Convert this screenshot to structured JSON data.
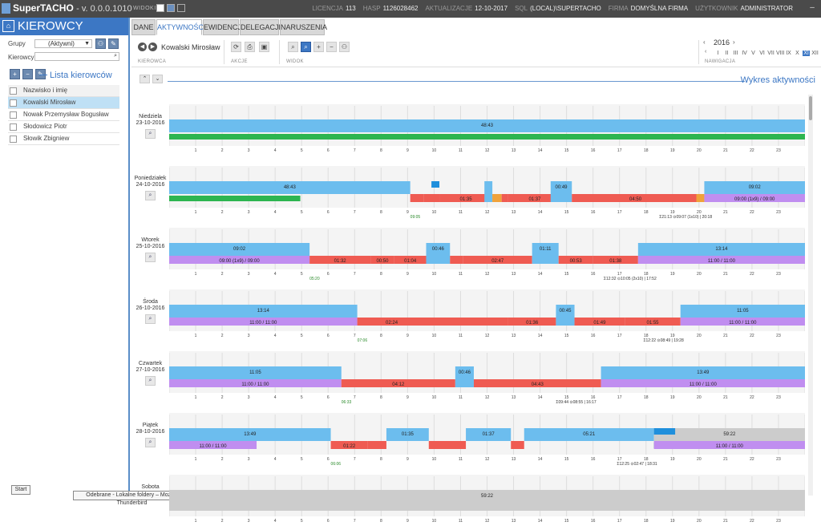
{
  "app": {
    "title": "SuperTACHO",
    "version": "- v. 0.0.0.1010",
    "widoki_label": "WIDOKI"
  },
  "meta": [
    {
      "k": "LICENCJA",
      "v": "113"
    },
    {
      "k": "HASP",
      "v": "1126028462"
    },
    {
      "k": "AKTUALIZACJE",
      "v": "12-10-2017"
    },
    {
      "k": "SQL",
      "v": "(LOCAL)\\SUPERTACHO"
    },
    {
      "k": "FIRMA",
      "v": "DOMYŚLNA FIRMA"
    },
    {
      "k": "UŻYTKOWNIK",
      "v": "ADMINISTRATOR"
    }
  ],
  "sidebar": {
    "title": "KIEROWCY",
    "grupy_label": "Grupy",
    "grupy_value": "(Aktywni)",
    "kierowcy_label": "Kierowcy",
    "list_title": "Lista kierowców",
    "column_header": "Nazwisko i imię",
    "drivers": [
      "Kowalski Mirosław",
      "Nowak Przemysław Bogusław",
      "Słodowicz Piotr",
      "Słowik Zbigniew"
    ]
  },
  "tabs": [
    "DANE",
    "AKTYWNOŚCI",
    "EWIDENCJA",
    "DELEGACJE",
    "NARUSZENIA"
  ],
  "active_tab": "AKTYWNOŚCI",
  "toolbar": {
    "driver_name": "Kowalski Mirosław",
    "kierowca_label": "KIEROWCA",
    "akcje_label": "AKCJE",
    "widok_label": "WIDOK",
    "nawigacja_label": "NAWIGACJA",
    "year": "2016",
    "months": [
      "I",
      "II",
      "III",
      "IV",
      "V",
      "VI",
      "VII",
      "VIII",
      "IX",
      "X",
      "XI",
      "XII"
    ],
    "selected_month": "XI"
  },
  "chart_title": "Wykres aktywności",
  "taskbar": {
    "start": "Start",
    "thunderbird": "Odebrane - Lokalne foldery – Mozilla Thunderbird"
  },
  "colors": {
    "rest": "#6cbdee",
    "drive": "#ef5b52",
    "work": "#f0a23a",
    "avail": "#1f8fdc",
    "ferry": "#c08ef0",
    "green": "#2db550",
    "unknown": "#cccccc",
    "accent": "#3c77c4"
  },
  "chart_data": {
    "type": "timeline",
    "x_ticks": [
      "1",
      "2",
      "3",
      "4",
      "5",
      "6",
      "7",
      "8",
      "9",
      "10",
      "11",
      "12",
      "13",
      "14",
      "15",
      "16",
      "17",
      "18",
      "19",
      "20",
      "21",
      "22",
      "23"
    ],
    "days": [
      {
        "day": "Niedziela",
        "date": "23-10-2016",
        "segments": [
          {
            "start": 0,
            "end": 24,
            "type": "rest",
            "label": "48:43",
            "row": "top"
          },
          {
            "start": 0,
            "end": 24,
            "type": "green",
            "row": "green"
          }
        ],
        "texts": []
      },
      {
        "day": "Poniedziałek",
        "date": "24-10-2016",
        "segments": [
          {
            "start": 0,
            "end": 9.1,
            "type": "rest",
            "label": "48:43",
            "row": "top"
          },
          {
            "start": 0,
            "end": 4.95,
            "type": "green",
            "row": "green"
          },
          {
            "start": 9.1,
            "end": 9.6,
            "type": "drive",
            "row": "bottom"
          },
          {
            "start": 9.6,
            "end": 10.2,
            "type": "drive",
            "row": "bottom"
          },
          {
            "start": 9.9,
            "end": 10.2,
            "type": "avail",
            "row": "mid"
          },
          {
            "start": 10.2,
            "end": 12.2,
            "type": "drive",
            "label": "01:35",
            "row": "bottom"
          },
          {
            "start": 11.9,
            "end": 12.2,
            "type": "rest",
            "row": "top"
          },
          {
            "start": 12.2,
            "end": 12.55,
            "type": "work",
            "row": "bottom"
          },
          {
            "start": 12.55,
            "end": 12.8,
            "type": "drive",
            "row": "bottom"
          },
          {
            "start": 12.8,
            "end": 14.8,
            "type": "drive",
            "label": "01:37",
            "row": "bottom"
          },
          {
            "start": 14.4,
            "end": 15.2,
            "type": "rest",
            "label": "00:49",
            "row": "top"
          },
          {
            "start": 15.2,
            "end": 20,
            "type": "drive",
            "label": "04:50",
            "row": "bottom"
          },
          {
            "start": 19.9,
            "end": 20.2,
            "type": "work",
            "row": "bottom"
          },
          {
            "start": 20.2,
            "end": 24,
            "type": "rest",
            "label": "09:02",
            "row": "top"
          },
          {
            "start": 20.2,
            "end": 24,
            "type": "ferry",
            "label": "09:00 (1x9) / 09:00",
            "row": "bottom"
          }
        ],
        "texts": [
          {
            "at": 9.1,
            "text": "09:05",
            "color": "#2a8a2a"
          },
          {
            "at": 18.5,
            "text": "Σ21:13 ⊙09:07 (1x10) | 20:18",
            "color": "#333"
          }
        ]
      },
      {
        "day": "Wtorek",
        "date": "25-10-2016",
        "segments": [
          {
            "start": 0,
            "end": 5.3,
            "type": "rest",
            "label": "09:02",
            "row": "top"
          },
          {
            "start": 0,
            "end": 5.3,
            "type": "ferry",
            "label": "09:00 (1x9) / 09:00",
            "row": "bottom"
          },
          {
            "start": 5.3,
            "end": 7.6,
            "type": "drive",
            "label": "01:32",
            "row": "bottom"
          },
          {
            "start": 7.6,
            "end": 8.5,
            "type": "drive",
            "label": "00:50",
            "row": "bottom"
          },
          {
            "start": 8.5,
            "end": 9.7,
            "type": "drive",
            "label": "01:04",
            "row": "bottom"
          },
          {
            "start": 9.7,
            "end": 10.6,
            "type": "rest",
            "label": "00:46",
            "row": "top"
          },
          {
            "start": 10.6,
            "end": 11.1,
            "type": "drive",
            "row": "bottom"
          },
          {
            "start": 11.1,
            "end": 13.7,
            "type": "drive",
            "label": "02:47",
            "row": "bottom"
          },
          {
            "start": 13.7,
            "end": 14.7,
            "type": "rest",
            "label": "01:11",
            "row": "top"
          },
          {
            "start": 14.7,
            "end": 16,
            "type": "drive",
            "label": "00:53",
            "row": "bottom"
          },
          {
            "start": 16,
            "end": 17.7,
            "type": "drive",
            "label": "01:38",
            "row": "bottom"
          },
          {
            "start": 17.7,
            "end": 24,
            "type": "rest",
            "label": "13:14",
            "row": "top"
          },
          {
            "start": 17.7,
            "end": 24,
            "type": "ferry",
            "label": "11:00 / 11:00",
            "row": "bottom"
          }
        ],
        "texts": [
          {
            "at": 5.3,
            "text": "05:20",
            "color": "#2a8a2a"
          },
          {
            "at": 16.4,
            "text": "Σ12:32 ⊙10:05 (2x10) | 17:52",
            "color": "#333"
          }
        ]
      },
      {
        "day": "Środa",
        "date": "26-10-2016",
        "segments": [
          {
            "start": 0,
            "end": 7.1,
            "type": "rest",
            "label": "13:14",
            "row": "top"
          },
          {
            "start": 0,
            "end": 7.1,
            "type": "ferry",
            "label": "11:00 / 11:00",
            "row": "bottom"
          },
          {
            "start": 7.1,
            "end": 9.7,
            "type": "drive",
            "label": "02:24",
            "row": "bottom"
          },
          {
            "start": 9.7,
            "end": 12.8,
            "type": "drive",
            "row": "bottom"
          },
          {
            "start": 12.8,
            "end": 14.6,
            "type": "drive",
            "label": "01:36",
            "row": "bottom"
          },
          {
            "start": 14.6,
            "end": 15.3,
            "type": "rest",
            "label": "00:45",
            "row": "top"
          },
          {
            "start": 15.3,
            "end": 17.2,
            "type": "drive",
            "label": "01:49",
            "row": "bottom"
          },
          {
            "start": 17.2,
            "end": 19.3,
            "type": "drive",
            "label": "01:55",
            "row": "bottom"
          },
          {
            "start": 19.3,
            "end": 24,
            "type": "rest",
            "label": "11:05",
            "row": "top"
          },
          {
            "start": 19.3,
            "end": 24,
            "type": "ferry",
            "label": "11:00 / 11:00",
            "row": "bottom"
          }
        ],
        "texts": [
          {
            "at": 7.1,
            "text": "07:06",
            "color": "#2a8a2a"
          },
          {
            "at": 17.9,
            "text": "Σ12:22 ⊙08:49 | 19:28",
            "color": "#333"
          }
        ]
      },
      {
        "day": "Czwartek",
        "date": "27-10-2016",
        "segments": [
          {
            "start": 0,
            "end": 6.5,
            "type": "rest",
            "label": "11:05",
            "row": "top"
          },
          {
            "start": 0,
            "end": 6.5,
            "type": "ferry",
            "label": "11:00 / 11:00",
            "row": "bottom"
          },
          {
            "start": 6.5,
            "end": 10.8,
            "type": "drive",
            "label": "04:12",
            "row": "bottom"
          },
          {
            "start": 10.8,
            "end": 11.5,
            "type": "rest",
            "label": "00:46",
            "row": "top"
          },
          {
            "start": 11.5,
            "end": 16.3,
            "type": "drive",
            "label": "04:43",
            "row": "bottom"
          },
          {
            "start": 16.3,
            "end": 24,
            "type": "rest",
            "label": "13:49",
            "row": "top"
          },
          {
            "start": 16.3,
            "end": 24,
            "type": "ferry",
            "label": "11:00 / 11:00",
            "row": "bottom"
          }
        ],
        "texts": [
          {
            "at": 6.5,
            "text": "06:33",
            "color": "#2a8a2a"
          },
          {
            "at": 14.6,
            "text": "Σ09:44 ⊙08:55 | 16:17",
            "color": "#333"
          }
        ]
      },
      {
        "day": "Piątek",
        "date": "28-10-2016",
        "segments": [
          {
            "start": 0,
            "end": 6.1,
            "type": "rest",
            "label": "13:49",
            "row": "top"
          },
          {
            "start": 0,
            "end": 3.3,
            "type": "ferry",
            "label": "11:00 / 11:00",
            "row": "bottom"
          },
          {
            "start": 6.1,
            "end": 7.5,
            "type": "drive",
            "label": "01:22",
            "row": "bottom"
          },
          {
            "start": 7.5,
            "end": 8.2,
            "type": "drive",
            "row": "bottom"
          },
          {
            "start": 8.2,
            "end": 9.8,
            "type": "rest",
            "label": "01:35",
            "row": "top"
          },
          {
            "start": 9.8,
            "end": 11.2,
            "type": "drive",
            "row": "bottom"
          },
          {
            "start": 11.2,
            "end": 12.9,
            "type": "rest",
            "label": "01:37",
            "row": "top"
          },
          {
            "start": 12.9,
            "end": 13.4,
            "type": "drive",
            "row": "bottom"
          },
          {
            "start": 13.4,
            "end": 18.3,
            "type": "rest",
            "label": "05:21",
            "row": "top"
          },
          {
            "start": 18.3,
            "end": 24,
            "type": "unknown",
            "label": "59:22",
            "row": "top"
          },
          {
            "start": 18.3,
            "end": 19.1,
            "type": "avail",
            "row": "mid"
          },
          {
            "start": 18.3,
            "end": 24,
            "type": "green",
            "row": "green"
          },
          {
            "start": 18.3,
            "end": 24,
            "type": "ferry",
            "label": "11:00 / 11:00",
            "row": "bottom"
          }
        ],
        "texts": [
          {
            "at": 6.1,
            "text": "06:06",
            "color": "#2a8a2a"
          },
          {
            "at": 16.9,
            "text": "Σ12:25 ⊙02:47 | 18:31",
            "color": "#333"
          }
        ]
      },
      {
        "day": "Sobota",
        "date": "",
        "segments": [
          {
            "start": 0,
            "end": 24,
            "type": "unknown",
            "label": "59:22",
            "row": "top"
          }
        ],
        "texts": []
      }
    ]
  }
}
